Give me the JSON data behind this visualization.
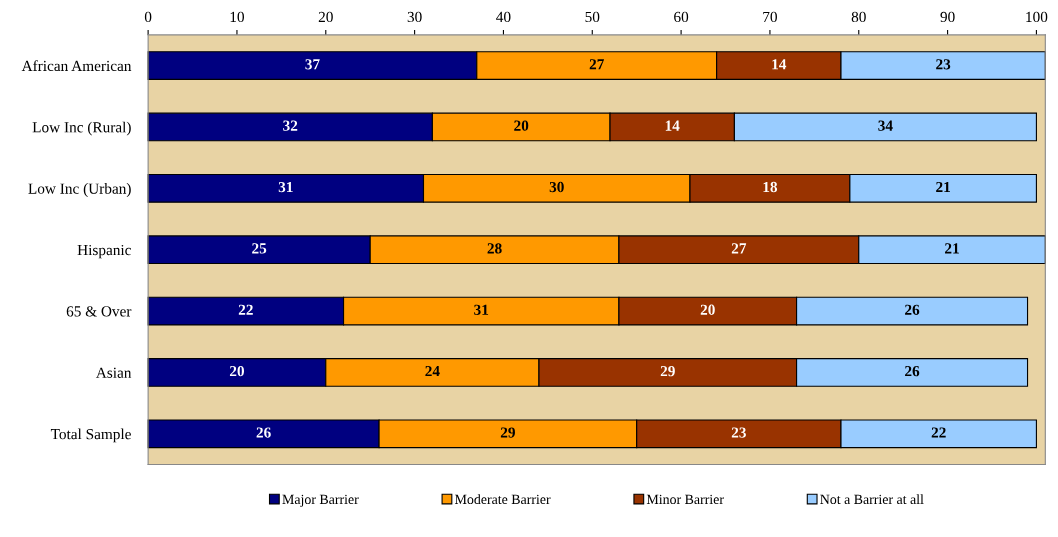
{
  "chart_data": {
    "type": "bar",
    "orientation": "horizontal",
    "stacked": true,
    "categories": [
      "African American",
      "Low Inc (Rural)",
      "Low Inc (Urban)",
      "Hispanic",
      "65 & Over",
      "Asian",
      "Total Sample"
    ],
    "series": [
      {
        "name": "Major Barrier",
        "color": "#000080",
        "values": [
          37,
          32,
          31,
          25,
          22,
          20,
          26
        ]
      },
      {
        "name": "Moderate Barrier",
        "color": "#ff9900",
        "values": [
          27,
          20,
          30,
          28,
          31,
          24,
          29
        ]
      },
      {
        "name": "Minor Barrier",
        "color": "#993300",
        "values": [
          14,
          14,
          18,
          27,
          20,
          29,
          23
        ]
      },
      {
        "name": "Not a Barrier at all",
        "color": "#99ccff",
        "values": [
          23,
          34,
          21,
          21,
          26,
          26,
          22
        ]
      }
    ],
    "xlim": [
      0,
      101
    ],
    "xticks": [
      0,
      10,
      20,
      30,
      40,
      50,
      60,
      70,
      80,
      90,
      100
    ],
    "data_labels": true,
    "legend": "bottom",
    "grid": false
  }
}
